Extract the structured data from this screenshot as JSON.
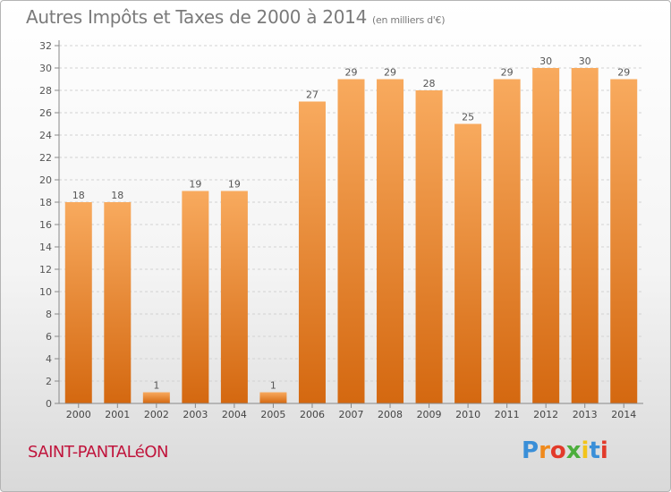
{
  "title": "Autres Impôts et Taxes de 2000 à 2014",
  "subtitle": "(en milliers d'€)",
  "commune": "SAINT-PANTALéON",
  "logo_text": "Proxiti",
  "colors": {
    "bar_light": "#f7a65a",
    "bar_dark": "#d86b12",
    "commune": "#c0143c",
    "text": "#7a7a7a"
  },
  "chart_data": {
    "type": "bar",
    "categories": [
      "2000",
      "2001",
      "2002",
      "2003",
      "2004",
      "2005",
      "2006",
      "2007",
      "2008",
      "2009",
      "2010",
      "2011",
      "2012",
      "2013",
      "2014"
    ],
    "values": [
      18,
      18,
      1,
      19,
      19,
      1,
      27,
      29,
      29,
      28,
      25,
      29,
      30,
      30,
      29
    ],
    "ylim": [
      0,
      32
    ],
    "yticks": [
      0,
      2,
      4,
      6,
      8,
      10,
      12,
      14,
      16,
      18,
      20,
      22,
      24,
      26,
      28,
      30,
      32
    ],
    "grid": true,
    "data_labels": true
  }
}
